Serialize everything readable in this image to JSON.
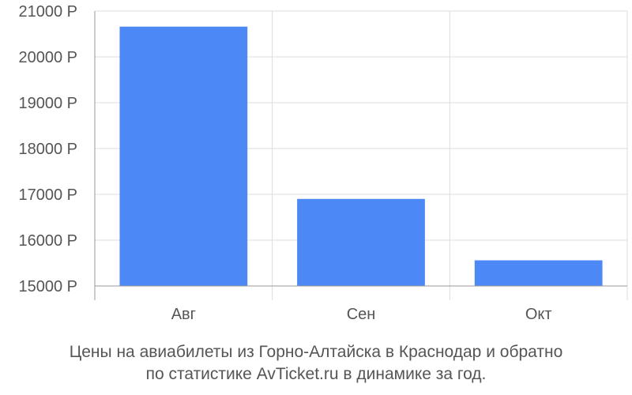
{
  "chart_data": {
    "type": "bar",
    "categories": [
      "Авг",
      "Сен",
      "Окт"
    ],
    "values": [
      20660,
      16900,
      15560
    ],
    "ylim": [
      15000,
      21000
    ],
    "yticks": [
      15000,
      16000,
      17000,
      18000,
      19000,
      20000,
      21000
    ],
    "ytick_labels": [
      "15000 Р",
      "16000 Р",
      "17000 Р",
      "18000 Р",
      "19000 Р",
      "20000 Р",
      "21000 Р"
    ],
    "grid": true,
    "bar_color": "#4d88f7",
    "grid_color": "#dddddd",
    "axis_color": "#999999"
  },
  "caption": {
    "line1": "Цены на авиабилеты из Горно-Алтайска в Краснодар и обратно",
    "line2": "по статистике AvTicket.ru в динамике за год."
  }
}
